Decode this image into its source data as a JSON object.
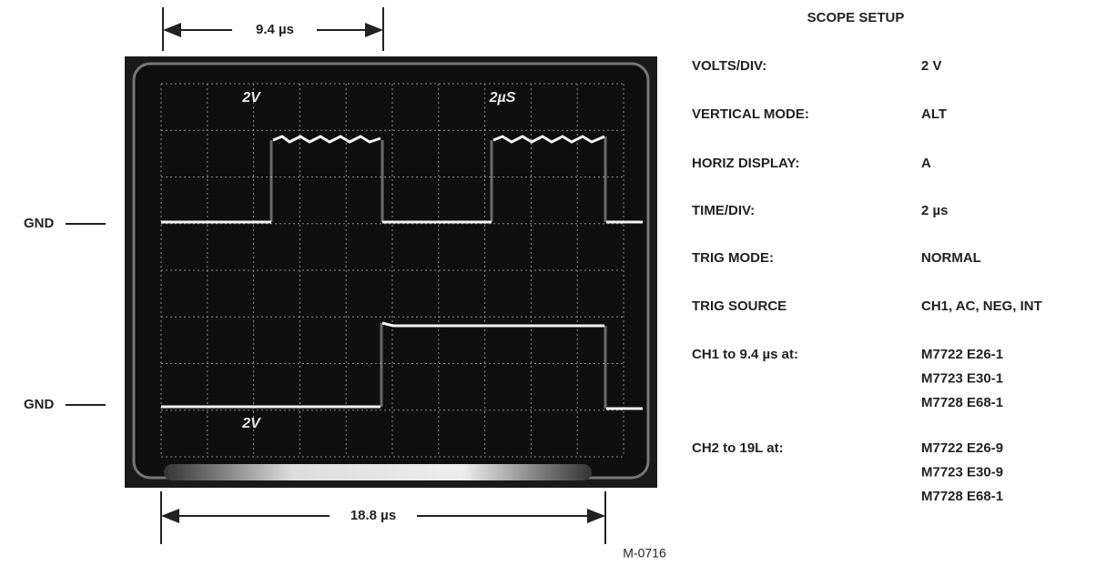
{
  "dimensions": {
    "top": "9.4 µs",
    "bottom": "18.8 µs"
  },
  "ground_labels": [
    "GND",
    "GND"
  ],
  "screen_labels": [
    "2V",
    "2µS",
    "2V"
  ],
  "setup": {
    "title": "SCOPE SETUP",
    "rows": [
      {
        "label": "VOLTS/DIV:",
        "values": [
          "2 V"
        ]
      },
      {
        "label": "VERTICAL MODE:",
        "values": [
          "ALT"
        ]
      },
      {
        "label": "HORIZ DISPLAY:",
        "values": [
          "A"
        ]
      },
      {
        "label": "TIME/DIV:",
        "values": [
          "2 µs"
        ]
      },
      {
        "label": "TRIG MODE:",
        "values": [
          "NORMAL"
        ]
      },
      {
        "label": "TRIG SOURCE",
        "values": [
          "CH1, AC, NEG, INT"
        ]
      },
      {
        "label": "CH1 to 9.4 µs at:",
        "values": [
          "M7722 E26-1",
          "M7723 E30-1",
          "M7728 E68-1"
        ]
      },
      {
        "label": "CH2 to 19L at:",
        "values": [
          "M7722 E26-9",
          "M7723 E30-9",
          "M7728 E68-1"
        ]
      }
    ]
  },
  "figure_id": "M-0716"
}
